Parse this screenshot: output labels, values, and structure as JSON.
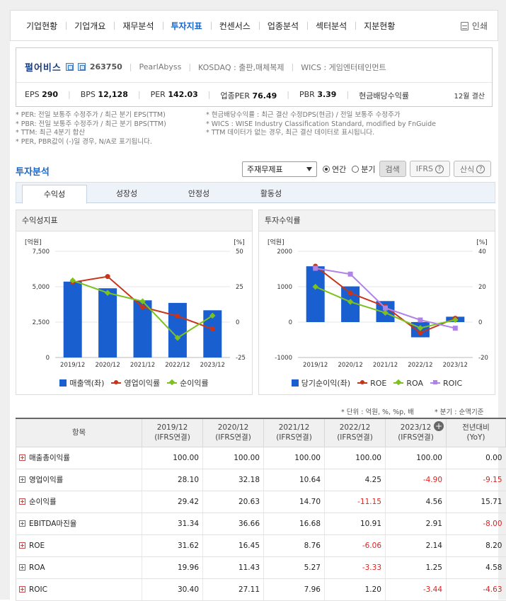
{
  "nav": {
    "items": [
      "기업현황",
      "기업개요",
      "재무분석",
      "투자지표",
      "컨센서스",
      "업종분석",
      "섹터분석",
      "지분현황"
    ],
    "active_index": 3,
    "print_label": "인쇄"
  },
  "company": {
    "name": "펄어비스",
    "code": "263750",
    "english": "PearlAbyss",
    "market": "KOSDAQ : 출판,매체복제",
    "wics": "WICS : 게임엔터테인먼트",
    "metrics": [
      {
        "label": "EPS",
        "value": "290"
      },
      {
        "label": "BPS",
        "value": "12,128"
      },
      {
        "label": "PER",
        "value": "142.03"
      },
      {
        "label": "업종PER",
        "value": "76.49"
      },
      {
        "label": "PBR",
        "value": "3.39"
      },
      {
        "label": "현금배당수익률",
        "value": ""
      }
    ],
    "settlement": "12월 결산"
  },
  "notes": {
    "left": [
      "* PER: 전일 보통주 수정주가 / 최근 분기 EPS(TTM)",
      "* PBR: 전일 보통주 수정주가 / 최근 분기 BPS(TTM)",
      "* TTM: 최근 4분기 합산",
      "* PER, PBR값이 (-)일 경우, N/A로 표기됩니다."
    ],
    "right": [
      "* 현금배당수익률 : 최근 결산 수정DPS(현금) / 전일 보통주 수정주가",
      "* WICS : WISE Industry Classification Standard, modified by FnGuide",
      "* TTM 데이터가 없는 경우, 최근 결산 데이터로 표시됩니다."
    ]
  },
  "section": {
    "title": "투자분석",
    "select_value": "주재무제표",
    "radio_annual": "연간",
    "radio_quarter": "분기",
    "search_label": "검색",
    "ifrs_label": "IFRS",
    "formula_label": "산식"
  },
  "tabs": [
    "수익성",
    "성장성",
    "안정성",
    "활동성"
  ],
  "chart1": {
    "title": "수익성지표",
    "left_unit": "[억원]",
    "right_unit": "[%]",
    "left_ticks": [
      "7,500",
      "5,000",
      "2,500",
      "0"
    ],
    "right_ticks": [
      "50",
      "25",
      "0",
      "-25"
    ],
    "legend": [
      "매출액(좌)",
      "영업이익률",
      "순이익률"
    ]
  },
  "chart2": {
    "title": "투자수익률",
    "left_unit": "[억원]",
    "right_unit": "[%]",
    "left_ticks": [
      "2000",
      "1000",
      "0",
      "-1000"
    ],
    "right_ticks": [
      "40",
      "20",
      "0",
      "-20"
    ],
    "legend": [
      "당기순이익(좌)",
      "ROE",
      "ROA",
      "ROIC"
    ]
  },
  "chart_data": [
    {
      "type": "bar",
      "title": "수익성지표",
      "categories": [
        "2019/12",
        "2020/12",
        "2021/12",
        "2022/12",
        "2023/12"
      ],
      "ylim_left": [
        0,
        7500
      ],
      "ylim_right": [
        -25,
        50
      ],
      "series": [
        {
          "name": "매출액(좌)",
          "type": "bar",
          "axis": "left",
          "values": [
            5359,
            4888,
            4038,
            3856,
            3335
          ]
        },
        {
          "name": "영업이익률",
          "type": "line",
          "axis": "right",
          "values": [
            28.1,
            32.18,
            10.64,
            4.25,
            -4.9
          ]
        },
        {
          "name": "순이익률",
          "type": "line",
          "axis": "right",
          "values": [
            29.42,
            20.63,
            14.7,
            -11.15,
            4.56
          ]
        }
      ]
    },
    {
      "type": "bar",
      "title": "투자수익률",
      "categories": [
        "2019/12",
        "2020/12",
        "2021/12",
        "2022/12",
        "2023/12"
      ],
      "ylim_left": [
        -1000,
        2000
      ],
      "ylim_right": [
        -20,
        40
      ],
      "series": [
        {
          "name": "당기순이익(좌)",
          "type": "bar",
          "axis": "left",
          "values": [
            1577,
            1009,
            594,
            -430,
            152
          ]
        },
        {
          "name": "ROE",
          "type": "line",
          "axis": "right",
          "values": [
            31.62,
            16.45,
            8.76,
            -6.06,
            2.14
          ]
        },
        {
          "name": "ROA",
          "type": "line",
          "axis": "right",
          "values": [
            19.96,
            11.43,
            5.27,
            -3.33,
            1.25
          ]
        },
        {
          "name": "ROIC",
          "type": "line",
          "axis": "right",
          "values": [
            30.4,
            27.11,
            7.96,
            1.2,
            -3.44
          ]
        }
      ]
    }
  ],
  "units": {
    "unit_text": "* 단위 : 억원, %, %p, 배",
    "quarter_text": "* 분기 : 순액기준"
  },
  "table": {
    "headers": [
      {
        "line1": "항목",
        "line2": ""
      },
      {
        "line1": "2019/12",
        "line2": "(IFRS연결)"
      },
      {
        "line1": "2020/12",
        "line2": "(IFRS연결)"
      },
      {
        "line1": "2021/12",
        "line2": "(IFRS연결)"
      },
      {
        "line1": "2022/12",
        "line2": "(IFRS연결)"
      },
      {
        "line1": "2023/12",
        "line2": "(IFRS연결)"
      },
      {
        "line1": "전년대비",
        "line2": "(YoY)"
      }
    ],
    "rows": [
      {
        "label": "매출총이익률",
        "values": [
          "100.00",
          "100.00",
          "100.00",
          "100.00",
          "100.00",
          "0.00"
        ]
      },
      {
        "label": "영업이익률",
        "values": [
          "28.10",
          "32.18",
          "10.64",
          "4.25",
          "-4.90",
          "-9.15"
        ]
      },
      {
        "label": "순이익률",
        "values": [
          "29.42",
          "20.63",
          "14.70",
          "-11.15",
          "4.56",
          "15.71"
        ]
      },
      {
        "label": "EBITDA마진율",
        "values": [
          "31.34",
          "36.66",
          "16.68",
          "10.91",
          "2.91",
          "-8.00"
        ]
      },
      {
        "label": "ROE",
        "values": [
          "31.62",
          "16.45",
          "8.76",
          "-6.06",
          "2.14",
          "8.20"
        ]
      },
      {
        "label": "ROA",
        "values": [
          "19.96",
          "11.43",
          "5.27",
          "-3.33",
          "1.25",
          "4.58"
        ]
      },
      {
        "label": "ROIC",
        "values": [
          "30.40",
          "27.11",
          "7.96",
          "1.20",
          "-3.44",
          "-4.63"
        ]
      }
    ]
  },
  "colors": {
    "bar": "#1a5fd0",
    "line_red": "#c8341a",
    "line_green": "#7cc21f",
    "line_purple": "#b083e6",
    "accent": "#1a66c8",
    "negative": "#e02020"
  }
}
